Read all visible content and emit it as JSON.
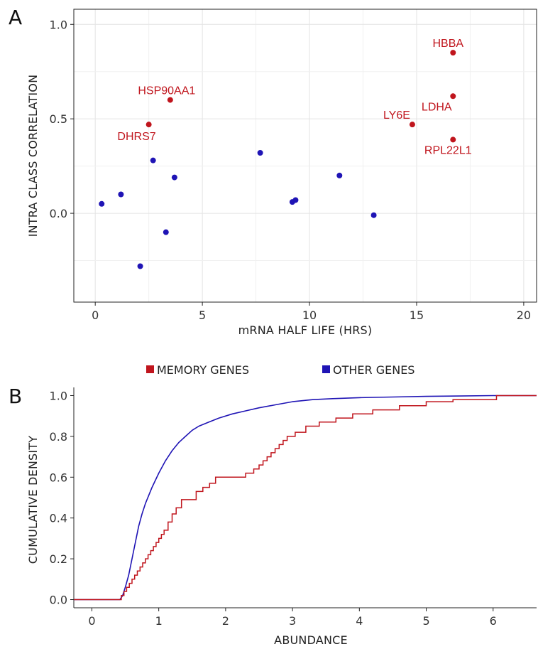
{
  "chart_data": [
    {
      "panel": "A",
      "type": "scatter",
      "xlabel": "mRNA HALF LIFE (HRS)",
      "ylabel": "INTRA CLASS CORRELATION",
      "xlim": [
        -1,
        20.6
      ],
      "ylim": [
        -0.47,
        1.08
      ],
      "xticks": [
        0,
        5,
        10,
        15,
        20
      ],
      "xtick_labels": [
        "0",
        "5",
        "10",
        "15",
        "20"
      ],
      "yticks": [
        0,
        0.5,
        1
      ],
      "ytick_labels": [
        "0.0",
        "0.5",
        "1.0"
      ],
      "grid": true,
      "series": [
        {
          "group": "memory",
          "color": "#c0151d",
          "points": [
            {
              "x": 2.5,
              "y": 0.47,
              "label": "DHRS7",
              "label_anchor": "end",
              "label_dx": 10,
              "label_dy": 22
            },
            {
              "x": 3.5,
              "y": 0.6,
              "label": "HSP90AA1",
              "label_anchor": "middle",
              "label_dx": -5,
              "label_dy": -8
            },
            {
              "x": 14.8,
              "y": 0.47,
              "label": "LY6E",
              "label_anchor": "end",
              "label_dx": -3,
              "label_dy": -8
            },
            {
              "x": 16.7,
              "y": 0.85,
              "label": "HBBA",
              "label_anchor": "middle",
              "label_dx": -7,
              "label_dy": -8
            },
            {
              "x": 16.7,
              "y": 0.62,
              "label": "LDHA",
              "label_anchor": "middle",
              "label_dx": -23,
              "label_dy": 20
            },
            {
              "x": 16.7,
              "y": 0.39,
              "label": "RPL22L1",
              "label_anchor": "middle",
              "label_dx": -7,
              "label_dy": 20
            }
          ]
        },
        {
          "group": "other",
          "color": "#1f14b5",
          "points": [
            {
              "x": 0.3,
              "y": 0.05
            },
            {
              "x": 1.2,
              "y": 0.1
            },
            {
              "x": 2.1,
              "y": -0.28
            },
            {
              "x": 2.7,
              "y": 0.28
            },
            {
              "x": 3.3,
              "y": -0.1
            },
            {
              "x": 3.7,
              "y": 0.19
            },
            {
              "x": 7.7,
              "y": 0.32
            },
            {
              "x": 9.2,
              "y": 0.06
            },
            {
              "x": 9.35,
              "y": 0.07
            },
            {
              "x": 11.4,
              "y": 0.2
            },
            {
              "x": 13.0,
              "y": -0.01
            }
          ]
        }
      ]
    },
    {
      "panel": "B",
      "type": "line",
      "xlabel": "ABUNDANCE",
      "ylabel": "CUMULATIVE DENSITY",
      "xlim": [
        -0.27,
        6.65
      ],
      "ylim": [
        -0.04,
        1.04
      ],
      "xticks": [
        0,
        1,
        2,
        3,
        4,
        5,
        6
      ],
      "xtick_labels": [
        "0",
        "1",
        "2",
        "3",
        "4",
        "5",
        "6"
      ],
      "yticks": [
        0,
        0.2,
        0.4,
        0.6,
        0.8,
        1.0
      ],
      "ytick_labels": [
        "0.0",
        "0.2",
        "0.4",
        "0.6",
        "0.8",
        "1.0"
      ],
      "grid": false,
      "legend": {
        "placement": "top",
        "items": [
          {
            "label": "MEMORY GENES",
            "color": "#c0151d"
          },
          {
            "label": "OTHER GENES",
            "color": "#1f14b5"
          }
        ]
      },
      "series": [
        {
          "group": "other",
          "color": "#1f14b5",
          "x": [
            -0.27,
            0.42,
            0.46,
            0.5,
            0.55,
            0.6,
            0.65,
            0.7,
            0.75,
            0.8,
            0.85,
            0.9,
            1.0,
            1.1,
            1.2,
            1.3,
            1.4,
            1.5,
            1.6,
            1.75,
            1.9,
            2.1,
            2.3,
            2.5,
            2.75,
            3.0,
            3.3,
            3.6,
            4.0,
            4.5,
            5.0,
            5.5,
            6.0,
            6.65
          ],
          "y": [
            0,
            0,
            0.02,
            0.06,
            0.12,
            0.2,
            0.28,
            0.36,
            0.42,
            0.47,
            0.51,
            0.55,
            0.62,
            0.68,
            0.73,
            0.77,
            0.8,
            0.83,
            0.85,
            0.87,
            0.89,
            0.91,
            0.925,
            0.94,
            0.955,
            0.97,
            0.98,
            0.985,
            0.99,
            0.993,
            0.996,
            0.998,
            1.0,
            1.0
          ]
        },
        {
          "group": "memory",
          "color": "#c0151d",
          "x": [
            -0.27,
            0.44,
            0.48,
            0.52,
            0.56,
            0.6,
            0.64,
            0.68,
            0.72,
            0.76,
            0.8,
            0.84,
            0.88,
            0.92,
            0.96,
            1.0,
            1.04,
            1.08,
            1.14,
            1.2,
            1.26,
            1.34,
            1.56,
            1.66,
            1.76,
            1.85,
            2.3,
            2.42,
            2.5,
            2.56,
            2.62,
            2.68,
            2.74,
            2.8,
            2.86,
            2.92,
            3.04,
            3.2,
            3.4,
            3.65,
            3.9,
            4.2,
            4.6,
            5.0,
            5.4,
            6.05,
            6.65
          ],
          "y": [
            0,
            0.02,
            0.04,
            0.06,
            0.08,
            0.1,
            0.12,
            0.14,
            0.16,
            0.18,
            0.2,
            0.22,
            0.24,
            0.26,
            0.28,
            0.3,
            0.32,
            0.34,
            0.38,
            0.42,
            0.45,
            0.49,
            0.53,
            0.55,
            0.57,
            0.6,
            0.62,
            0.64,
            0.66,
            0.68,
            0.7,
            0.72,
            0.74,
            0.76,
            0.78,
            0.8,
            0.82,
            0.85,
            0.87,
            0.89,
            0.91,
            0.93,
            0.95,
            0.97,
            0.98,
            1.0,
            1.0
          ]
        }
      ]
    }
  ]
}
